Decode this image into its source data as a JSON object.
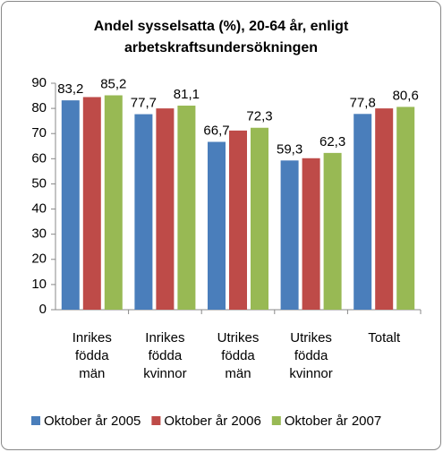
{
  "chart_data": {
    "type": "bar",
    "title": [
      "Andel sysselsatta (%), 20-64 år, enligt",
      "arbetskraftsundersökningen"
    ],
    "categories": [
      "Inrikes födda män",
      "Inrikes födda kvinnor",
      "Utrikes födda män",
      "Utrikes födda kvinnor",
      "Totalt"
    ],
    "series": [
      {
        "name": "Oktober år 2005",
        "color": "#4a7ebb",
        "values": [
          83.2,
          77.7,
          66.7,
          59.3,
          77.8
        ],
        "value_labels": [
          "83,2",
          "77,7",
          "66,7",
          "59,3",
          "77,8"
        ]
      },
      {
        "name": "Oktober år 2006",
        "color": "#be4b48",
        "values": [
          84.5,
          80,
          71.2,
          60.2,
          80
        ]
      },
      {
        "name": "Oktober år 2007",
        "color": "#98b954",
        "values": [
          85.2,
          81.1,
          72.3,
          62.3,
          80.6
        ],
        "value_labels": [
          "85,2",
          "81,1",
          "72,3",
          "62,3",
          "80,6"
        ]
      }
    ],
    "ylim": [
      0,
      90
    ],
    "yticks": [
      0,
      10,
      20,
      30,
      40,
      50,
      60,
      70,
      80,
      90
    ],
    "legend": "bottom"
  }
}
